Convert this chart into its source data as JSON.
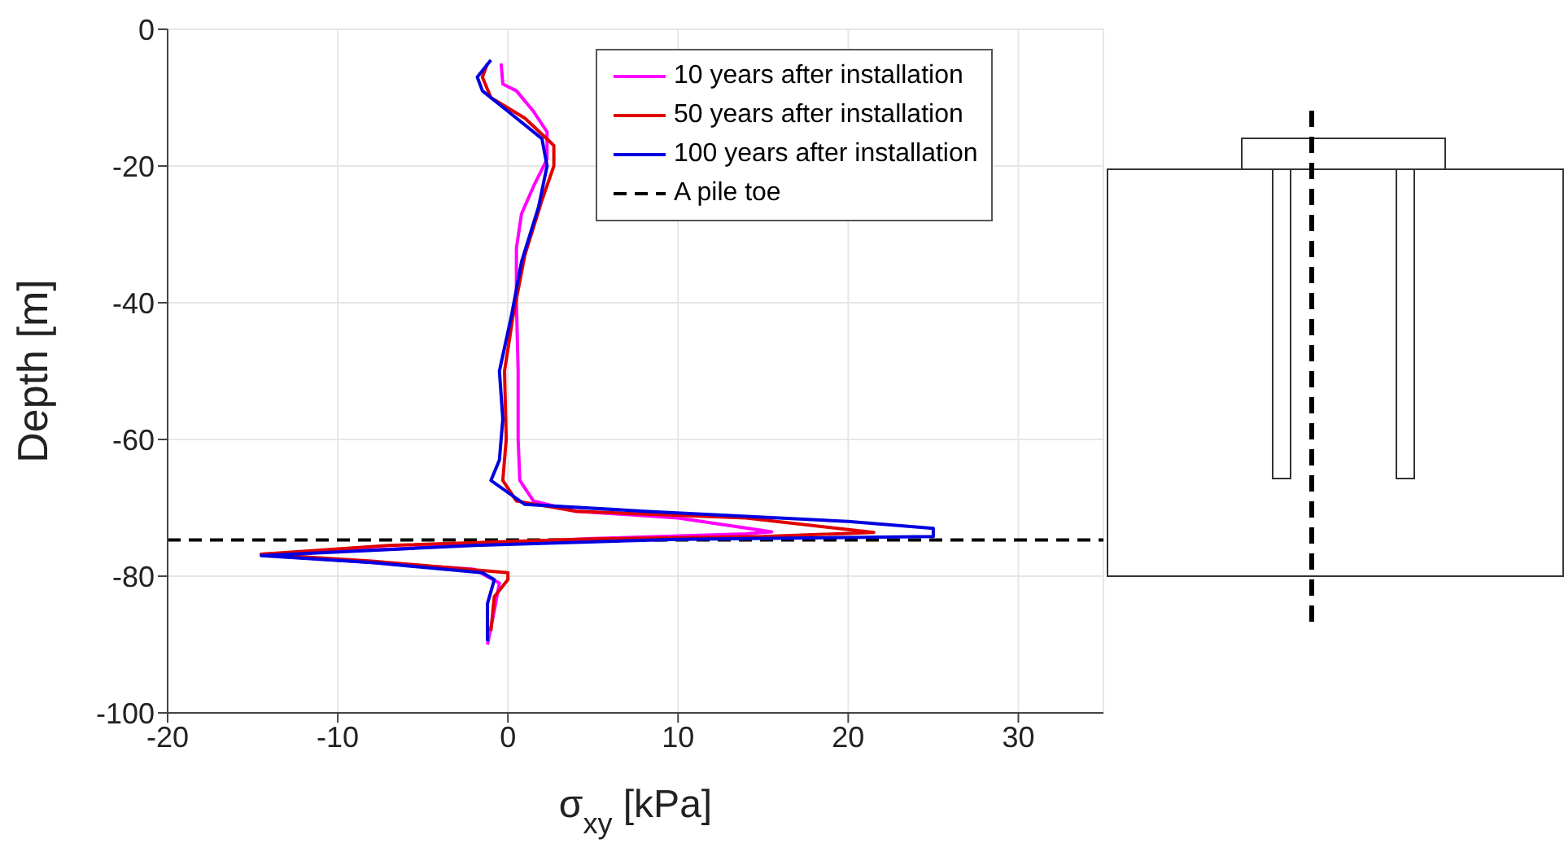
{
  "chart_data": {
    "type": "line",
    "xlabel": "σ$_{xy}$ [kPa]",
    "ylabel": "Depth [m]",
    "xlim": [
      -20,
      35
    ],
    "xticks": [
      -20,
      -10,
      0,
      10,
      20,
      30
    ],
    "ylim": [
      -100,
      0
    ],
    "yticks": [
      -100,
      -80,
      -60,
      -40,
      -20,
      0
    ],
    "grid": true,
    "legend": "top right",
    "line_style": "solid",
    "marker": "none",
    "ref_lines": [
      {
        "axis": "y",
        "value": -74.7,
        "label": "A pile toe",
        "color": "#000000",
        "line_style": "dashed"
      }
    ],
    "series": [
      {
        "name": "10 years after installation",
        "color": "#ff00ff",
        "x": [
          -0.4,
          -0.3,
          0.5,
          1.5,
          2.3,
          2.3,
          1.5,
          0.8,
          0.5,
          0.5,
          0.6,
          0.6,
          0.7,
          1.5,
          4,
          10,
          15.5,
          14,
          5,
          -6.5,
          -14.5,
          -11,
          -2,
          -0.5,
          -0.8,
          -1.2
        ],
        "values": [
          -5,
          -8,
          -9,
          -12,
          -15,
          -19,
          -23,
          -27,
          -32,
          -40,
          -50,
          -60,
          -66,
          -69,
          -70.5,
          -71.5,
          -73.5,
          -73.8,
          -74.5,
          -76,
          -76.8,
          -77.5,
          -79,
          -81,
          -85,
          -90
        ]
      },
      {
        "name": "50 years after installation",
        "color": "#e00000",
        "x": [
          -1.2,
          -1.5,
          -1,
          1,
          2.7,
          2.7,
          2,
          1,
          0.3,
          -0.2,
          -0.1,
          -0.3,
          0.5,
          4,
          14,
          21.5,
          15,
          4,
          -7,
          -14.5,
          -8,
          0,
          0,
          -0.8,
          -1
        ],
        "values": [
          -5,
          -7,
          -10,
          -13,
          -17,
          -20,
          -25,
          -33,
          -42,
          -50,
          -60,
          -66,
          -69,
          -70.5,
          -71.5,
          -73.6,
          -74.2,
          -74.6,
          -75.5,
          -76.8,
          -77.8,
          -79.5,
          -80.5,
          -83,
          -88
        ]
      },
      {
        "name": "100 years after installation",
        "color": "#0000e0",
        "x": [
          -1,
          -1.8,
          -1.5,
          0,
          2,
          2.3,
          1.8,
          0.8,
          0.2,
          -0.5,
          -0.3,
          -0.5,
          -1,
          1,
          8,
          20,
          25,
          25,
          10,
          -2,
          -14.5,
          -8,
          -1.5,
          -0.8,
          -1.2,
          -1.2
        ],
        "values": [
          -4.5,
          -7,
          -9,
          -12,
          -16,
          -20,
          -26,
          -34,
          -42,
          -50,
          -57,
          -63,
          -66,
          -69.5,
          -70.5,
          -72,
          -73,
          -74.2,
          -74.6,
          -75.5,
          -77,
          -78,
          -79.5,
          -80.5,
          -84,
          -89.5
        ]
      }
    ]
  }
}
